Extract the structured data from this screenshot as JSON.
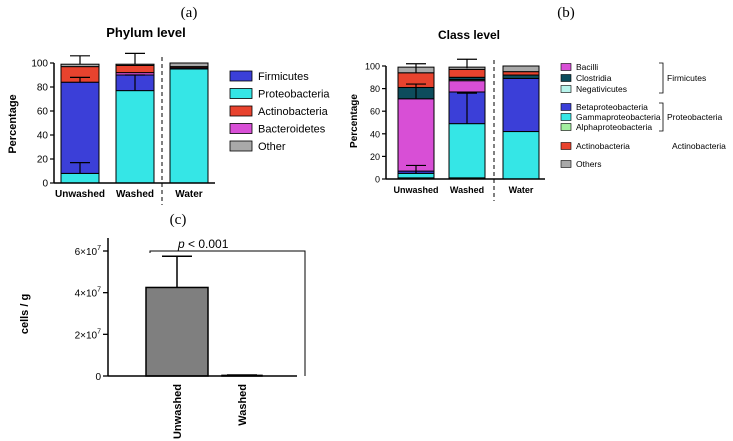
{
  "panel_labels": {
    "a": "(a)",
    "b": "(b)",
    "c": "(c)"
  },
  "colors": {
    "Firmicutes": "#3b3fd8",
    "Proteobacteria": "#35e6e6",
    "Actinobacteria": "#e8432e",
    "Bacteroidetes": "#d84fd6",
    "Other": "#a9a9a9",
    "Bacilli": "#d84fd6",
    "Clostridia": "#0d4c5c",
    "Negativicutes": "#b8f4ec",
    "Betaproteobacteria": "#3b3fd8",
    "Gammaproteobacteria": "#35e6e6",
    "Alphaproteobacteria": "#a3f0a0",
    "Others": "#a9a9a9",
    "count_bar": "#7f7f7f"
  },
  "chart_data": [
    {
      "id": "a",
      "type": "bar",
      "stacked": true,
      "title": "Phylum level",
      "ylabel": "Percentage",
      "xlabel": "",
      "ylim": [
        0,
        100
      ],
      "yticks": [
        "0",
        "20",
        "40",
        "60",
        "80",
        "100"
      ],
      "categories": [
        "Unwashed",
        "Washed",
        "Water"
      ],
      "separator_after": "Washed",
      "series": [
        {
          "name": "Proteobacteria",
          "values": [
            8,
            77,
            95
          ]
        },
        {
          "name": "Firmicutes",
          "values": [
            76,
            13,
            1
          ]
        },
        {
          "name": "Bacteroidetes",
          "values": [
            0,
            2,
            0
          ]
        },
        {
          "name": "Actinobacteria",
          "values": [
            13,
            6,
            1
          ]
        },
        {
          "name": "Other",
          "values": [
            2,
            1,
            3
          ]
        }
      ],
      "legend_order": [
        "Firmicutes",
        "Proteobacteria",
        "Actinobacteria",
        "Bacteroidetes",
        "Other"
      ],
      "error_bars": [
        {
          "category": "Unwashed",
          "at": 8,
          "up": 17
        },
        {
          "category": "Unwashed",
          "at": 84,
          "up": 88
        },
        {
          "category": "Unwashed",
          "at": 99,
          "up": 106
        },
        {
          "category": "Washed",
          "at": 77,
          "up": 90
        },
        {
          "category": "Washed",
          "at": 99,
          "up": 108
        }
      ]
    },
    {
      "id": "b",
      "type": "bar",
      "stacked": true,
      "title": "Class level",
      "ylabel": "Percentage",
      "xlabel": "",
      "ylim": [
        0,
        100
      ],
      "yticks": [
        "0",
        "20",
        "40",
        "60",
        "80",
        "100"
      ],
      "categories": [
        "Unwashed",
        "Washed",
        "Water"
      ],
      "separator_after": "Washed",
      "series": [
        {
          "name": "Alphaproteobacteria",
          "values": [
            1,
            1,
            0
          ]
        },
        {
          "name": "Gammaproteobacteria",
          "values": [
            4,
            48,
            42
          ]
        },
        {
          "name": "Betaproteobacteria",
          "values": [
            2,
            28,
            47
          ]
        },
        {
          "name": "Bacilli",
          "values": [
            64,
            10,
            0
          ]
        },
        {
          "name": "Negativicutes",
          "values": [
            0,
            1,
            0
          ]
        },
        {
          "name": "Clostridia",
          "values": [
            10,
            2,
            3
          ]
        },
        {
          "name": "Actinobacteria",
          "values": [
            13,
            7,
            3
          ]
        },
        {
          "name": "Others",
          "values": [
            5,
            2,
            5
          ]
        }
      ],
      "legend_groups": [
        {
          "label": "Firmicutes",
          "items": [
            "Bacilli",
            "Clostridia",
            "Negativicutes"
          ]
        },
        {
          "label": "Proteobacteria",
          "items": [
            "Betaproteobacteria",
            "Gammaproteobacteria",
            "Alphaproteobacteria"
          ]
        },
        {
          "label": "Actinobacteria",
          "items": [
            "Actinobacteria"
          ]
        },
        {
          "label": "",
          "items": [
            "Others"
          ]
        }
      ],
      "error_bars": [
        {
          "category": "Unwashed",
          "at": 5,
          "up": 12
        },
        {
          "category": "Unwashed",
          "at": 71,
          "up": 84
        },
        {
          "category": "Unwashed",
          "at": 94,
          "up": 102
        },
        {
          "category": "Washed",
          "at": 49,
          "up": 76
        },
        {
          "category": "Washed",
          "at": 98,
          "up": 106
        }
      ]
    },
    {
      "id": "c",
      "type": "bar",
      "title": "",
      "ylabel": "cells / g",
      "xlabel": "",
      "ylim": [
        0,
        60000000
      ],
      "yticks": [
        {
          "value": 0,
          "base": "0",
          "exp": ""
        },
        {
          "value": 20000000,
          "base": "2×10",
          "exp": "7"
        },
        {
          "value": 40000000,
          "base": "4×10",
          "exp": "7"
        },
        {
          "value": 60000000,
          "base": "6×10",
          "exp": "7"
        }
      ],
      "categories": [
        "Unwashed",
        "Washed"
      ],
      "values": [
        42500000,
        300000
      ],
      "error_up": [
        57500000,
        500000
      ],
      "annotation": {
        "prefix": "p",
        "text": " < 0.001"
      }
    }
  ]
}
